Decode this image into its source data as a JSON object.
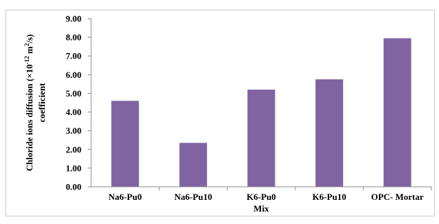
{
  "chart_data": {
    "type": "bar",
    "categories": [
      "Na6-Pu0",
      "Na6-Pu10",
      "K6-Pu0",
      "K6-Pu10",
      "OPC- Mortar"
    ],
    "values": [
      4.6,
      2.35,
      5.2,
      5.75,
      7.95
    ],
    "xlabel": "Mix",
    "ylabel_line1": "Chloride ions diffusion (×10",
    "ylabel_sup1": "-12",
    "ylabel_mid": " m",
    "ylabel_sup2": "2",
    "ylabel_end": "/s)",
    "ylabel_line2": "coefficient",
    "ylim": [
      0,
      9
    ],
    "yticks": [
      "0.00",
      "1.00",
      "2.00",
      "3.00",
      "4.00",
      "5.00",
      "6.00",
      "7.00",
      "8.00",
      "9.00"
    ],
    "grid": false,
    "legend": "none",
    "bar_color": "#8064a2"
  }
}
